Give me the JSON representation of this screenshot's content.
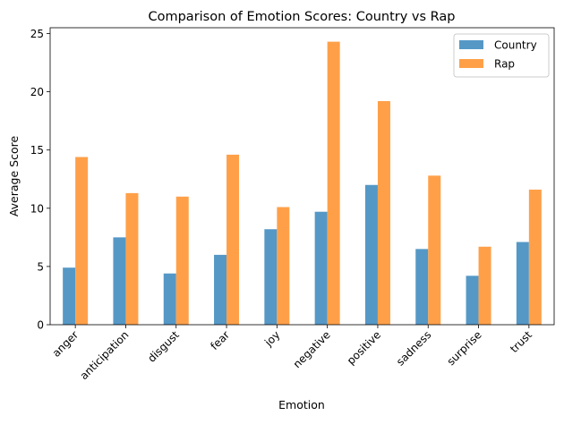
{
  "chart_data": {
    "type": "bar",
    "title": "Comparison of Emotion Scores: Country vs Rap",
    "xlabel": "Emotion",
    "ylabel": "Average Score",
    "ylim": [
      0,
      25.5
    ],
    "yticks": [
      "0",
      "5",
      "10",
      "15",
      "20",
      "25"
    ],
    "grid": false,
    "legend_position": "top-right",
    "categories": [
      "anger",
      "anticipation",
      "disgust",
      "fear",
      "joy",
      "negative",
      "positive",
      "sadness",
      "surprise",
      "trust"
    ],
    "series": [
      {
        "name": "Country",
        "color": "#4c92c3",
        "values": [
          4.9,
          7.5,
          4.4,
          6.0,
          8.2,
          9.7,
          12.0,
          6.5,
          4.2,
          7.1
        ]
      },
      {
        "name": "Rap",
        "color": "#ff9b3f",
        "values": [
          14.4,
          11.3,
          11.0,
          14.6,
          10.1,
          24.3,
          19.2,
          12.8,
          6.7,
          11.6
        ]
      }
    ]
  }
}
